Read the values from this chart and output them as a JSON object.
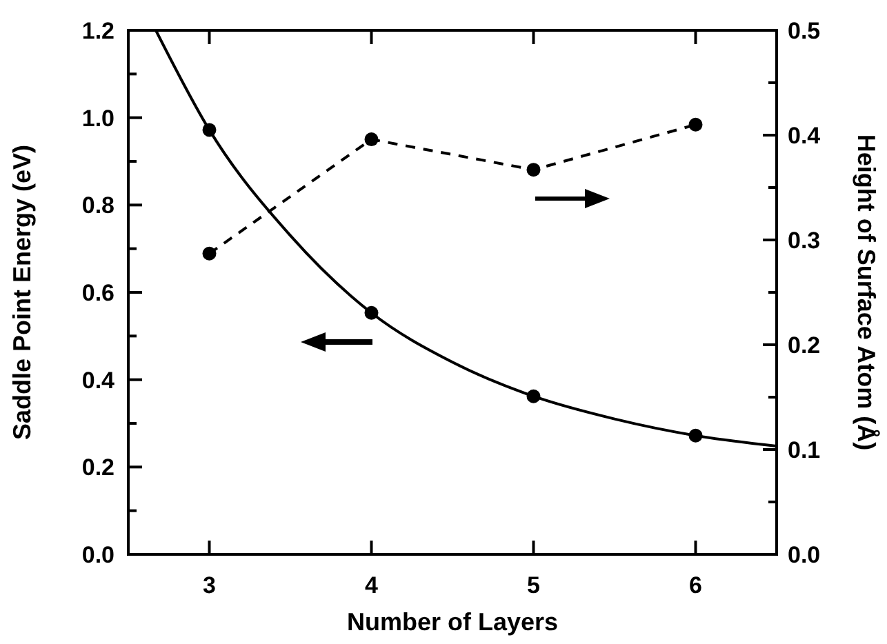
{
  "chart_data": {
    "type": "line",
    "xlabel": "Number of Layers",
    "ylabel": "Saddle Point Energy (eV)",
    "y2label": "Height of Surface Atom (Å)",
    "xlim": [
      2.5,
      6.5
    ],
    "xticks": [
      3,
      4,
      5,
      6
    ],
    "ylim": [
      0,
      1.2
    ],
    "yticks": [
      {
        "value": 0,
        "label": "0.0"
      },
      {
        "value": 0.1,
        "label": null
      },
      {
        "value": 0.2,
        "label": "0.2"
      },
      {
        "value": 0.3,
        "label": null
      },
      {
        "value": 0.4,
        "label": "0.4"
      },
      {
        "value": 0.5,
        "label": null
      },
      {
        "value": 0.6,
        "label": "0.6"
      },
      {
        "value": 0.7,
        "label": null
      },
      {
        "value": 0.8,
        "label": "0.8"
      },
      {
        "value": 0.9,
        "label": null
      },
      {
        "value": 1,
        "label": "1.0"
      },
      {
        "value": 1.1,
        "label": null
      },
      {
        "value": 1.2,
        "label": "1.2"
      }
    ],
    "y2lim": [
      0,
      0.5
    ],
    "y2ticks": [
      {
        "value": 0,
        "label": "0.0"
      },
      {
        "value": 0.05,
        "label": null
      },
      {
        "value": 0.1,
        "label": "0.1"
      },
      {
        "value": 0.15,
        "label": null
      },
      {
        "value": 0.2,
        "label": "0.2"
      },
      {
        "value": 0.25,
        "label": null
      },
      {
        "value": 0.3,
        "label": "0.3"
      },
      {
        "value": 0.35,
        "label": null
      },
      {
        "value": 0.4,
        "label": "0.4"
      },
      {
        "value": 0.45,
        "label": null
      },
      {
        "value": 0.5,
        "label": "0.5"
      }
    ],
    "grid": false,
    "series": [
      {
        "type": "line",
        "color": "#000000",
        "marker": "none",
        "line_style": "solid",
        "x": [
          2.67,
          3,
          3.5,
          4,
          4.5,
          5,
          5.5,
          6,
          6.5
        ],
        "values": [
          1.2,
          0.972,
          0.73,
          0.553,
          0.44,
          0.362,
          0.31,
          0.272,
          0.248
        ]
      },
      {
        "type": "scatter",
        "color": "#000000",
        "marker": "circle",
        "x": [
          3,
          4,
          5,
          6
        ],
        "values": [
          0.972,
          0.553,
          0.362,
          0.272
        ]
      },
      {
        "color": "#000000",
        "marker": "circle",
        "line_style": "dashed",
        "axis": "y2",
        "x": [
          3,
          4,
          5,
          6
        ],
        "values": [
          0.287,
          0.396,
          0.367,
          0.41
        ]
      }
    ]
  }
}
